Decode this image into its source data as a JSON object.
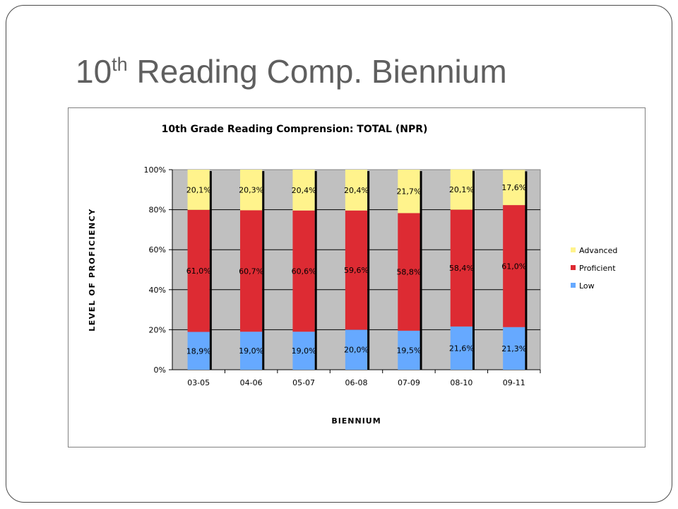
{
  "slide": {
    "title_main": "10",
    "title_sup": "th",
    "title_rest": " Reading Comp. Biennium"
  },
  "chart_data": {
    "type": "bar",
    "stacked": true,
    "title": "10th Grade Reading Comprension:  TOTAL (NPR)",
    "xlabel": "BIENNIUM",
    "ylabel": "LEVEL OF PROFICIENCY",
    "categories": [
      "03-05",
      "04-06",
      "05-07",
      "06-08",
      "07-09",
      "08-10",
      "09-11"
    ],
    "ylim": [
      0,
      100
    ],
    "yticks": [
      "0%",
      "20%",
      "40%",
      "60%",
      "80%",
      "100%"
    ],
    "grid": true,
    "legend_position": "right",
    "plot_background": "#C0C0C0",
    "series": [
      {
        "name": "Low",
        "color": "#66A9FF",
        "values": [
          18.9,
          19.0,
          19.0,
          20.0,
          19.5,
          21.6,
          21.3
        ],
        "labels": [
          "18,9%",
          "19,0%",
          "19,0%",
          "20,0%",
          "19,5%",
          "21,6%",
          "21,3%"
        ]
      },
      {
        "name": "Proficient",
        "color": "#DD2B33",
        "values": [
          61.0,
          60.7,
          60.6,
          59.6,
          58.8,
          58.4,
          61.0
        ],
        "labels": [
          "61,0%",
          "60,7%",
          "60,6%",
          "59,6%",
          "58,8%",
          "58,4%",
          "61,0%"
        ]
      },
      {
        "name": "Advanced",
        "color": "#FFF38C",
        "values": [
          20.1,
          20.3,
          20.4,
          20.4,
          21.7,
          20.1,
          17.6
        ],
        "labels": [
          "20,1%",
          "20,3%",
          "20,4%",
          "20,4%",
          "21,7%",
          "20,1%",
          "17,6%"
        ]
      }
    ],
    "legend_order": [
      "Advanced",
      "Proficient",
      "Low"
    ]
  }
}
